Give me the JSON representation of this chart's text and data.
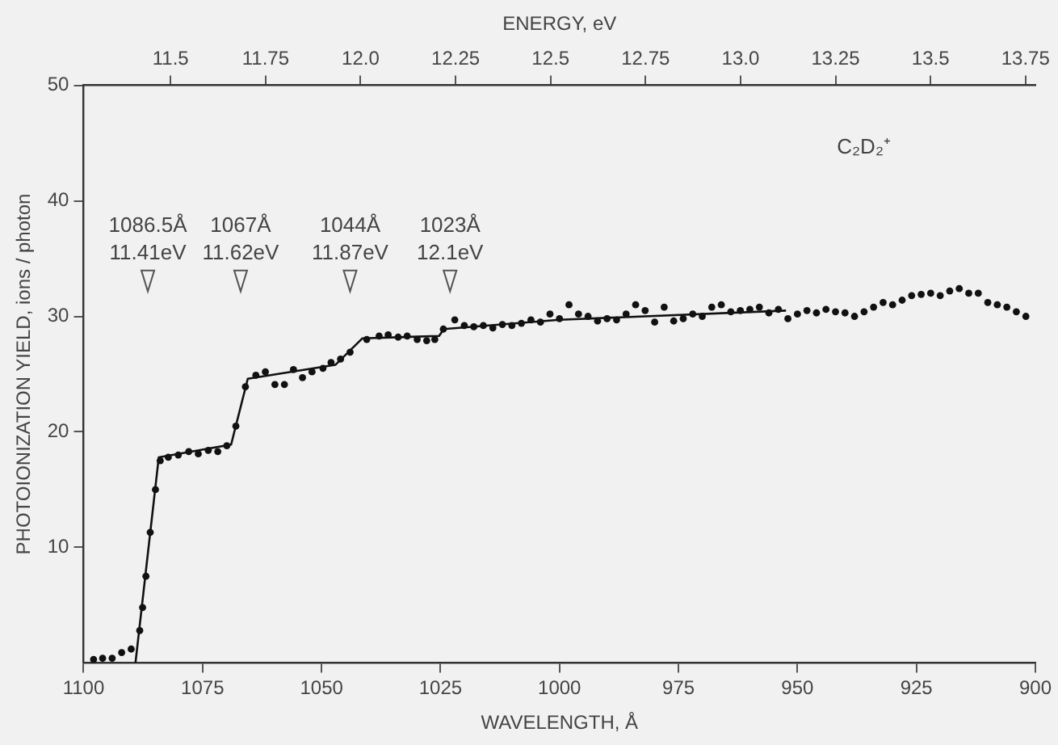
{
  "chart_data": {
    "type": "scatter",
    "xlabel": "WAVELENGTH, Å",
    "ylabel": "PHOTOIONIZATION YIELD, ions / photon",
    "x2label": "ENERGY, eV",
    "xlim": [
      1100,
      900
    ],
    "xticks": [
      1100,
      1075,
      1050,
      1025,
      1000,
      975,
      950,
      925,
      900
    ],
    "x2lim": [
      11.271,
      13.776
    ],
    "x2ticks": [
      11.5,
      11.75,
      {
        "value": 12,
        "label": "12.0"
      },
      12.25,
      12.5,
      12.75,
      {
        "value": 13,
        "label": "13.0"
      },
      13.25,
      13.5,
      13.75
    ],
    "ylim": [
      0,
      50
    ],
    "yticks": [
      10,
      20,
      30,
      40,
      50
    ],
    "grid": false,
    "legend": false,
    "series": [
      {
        "type": "scatter",
        "color": "#111111",
        "marker": "circle",
        "x": [
          1097.9,
          1096,
          1094,
          1092,
          1090,
          1088.2,
          1087.6,
          1086.9,
          1086,
          1084.9,
          1083.9,
          1082.2,
          1080.1,
          1077.9,
          1075.9,
          1073.8,
          1071.8,
          1069.9,
          1068,
          1066,
          1063.8,
          1061.8,
          1059.8,
          1057.8,
          1055.9,
          1054,
          1052,
          1049.7,
          1048,
          1046,
          1044,
          1040.5,
          1037.9,
          1036,
          1033.9,
          1032,
          1029.9,
          1027.9,
          1026.2,
          1024.4,
          1022,
          1020,
          1018,
          1016,
          1014,
          1012,
          1010,
          1008,
          1006,
          1004,
          1002,
          1000,
          998,
          996,
          994,
          992,
          990,
          988,
          986,
          984,
          982,
          980,
          978,
          976,
          974,
          972,
          970,
          968,
          966,
          964,
          962,
          960,
          958,
          956,
          954,
          952,
          950,
          948,
          946,
          944,
          942,
          940,
          938,
          936,
          934,
          932,
          930,
          928,
          926,
          924,
          922,
          920,
          918,
          916,
          914,
          912,
          910,
          908,
          906,
          904,
          902
        ],
        "values": [
          0.3,
          0.4,
          0.4,
          0.9,
          1.2,
          2.8,
          4.8,
          7.5,
          11.3,
          15.0,
          17.5,
          17.8,
          18.0,
          18.3,
          18.1,
          18.4,
          18.3,
          18.8,
          20.5,
          23.9,
          24.9,
          25.2,
          24.1,
          24.1,
          25.4,
          24.7,
          25.2,
          25.5,
          26.0,
          26.3,
          26.9,
          28.0,
          28.3,
          28.4,
          28.2,
          28.3,
          28.0,
          27.9,
          28.0,
          28.9,
          29.7,
          29.2,
          29.1,
          29.2,
          29.0,
          29.3,
          29.2,
          29.4,
          29.7,
          29.5,
          30.2,
          29.8,
          31.0,
          30.2,
          30.0,
          29.6,
          29.8,
          29.7,
          30.2,
          31.0,
          30.5,
          29.5,
          30.8,
          29.6,
          29.8,
          30.2,
          30.0,
          30.8,
          31.0,
          30.4,
          30.5,
          30.6,
          30.8,
          30.3,
          30.6,
          29.8,
          30.2,
          30.5,
          30.3,
          30.6,
          30.4,
          30.3,
          30.0,
          30.4,
          30.8,
          31.2,
          31.0,
          31.4,
          31.8,
          31.9,
          32.0,
          31.8,
          32.2,
          32.4,
          32.0,
          32.0,
          31.2,
          31.0,
          30.8,
          30.4,
          30.0
        ]
      },
      {
        "type": "line",
        "color": "#111111",
        "marker": "none",
        "line_style": "solid",
        "x": [
          1089.1,
          1084.2,
          1069,
          1065.5,
          1047.1,
          1041.4,
          1025.3,
          1024.3,
          1000,
          952.4
        ],
        "values": [
          0,
          17.8,
          18.9,
          24.6,
          25.8,
          28.1,
          28.3,
          28.9,
          29.7,
          30.5
        ]
      }
    ],
    "annotations": [
      {
        "text": "1086.5Å\n11.41eV",
        "x": 1086.5,
        "y": 33
      },
      {
        "text": "1067Å\n11.62eV",
        "x": 1067,
        "y": 33
      },
      {
        "text": "1044Å\n11.87eV",
        "x": 1044,
        "y": 33
      },
      {
        "text": "1023Å\n12.1eV",
        "x": 1023,
        "y": 33
      },
      "C₂D₂⁺"
    ]
  }
}
